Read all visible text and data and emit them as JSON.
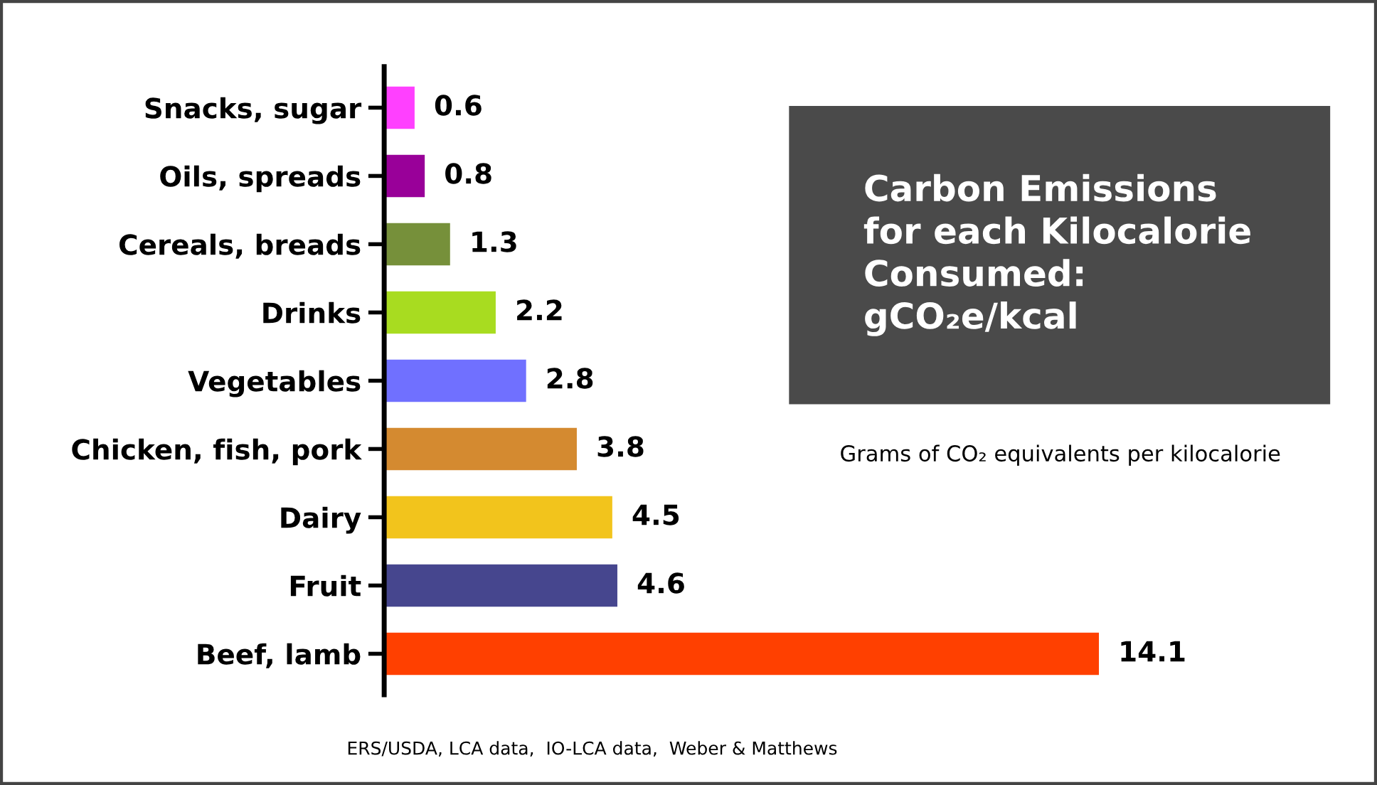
{
  "chart_data": {
    "type": "bar",
    "orientation": "horizontal",
    "title": "Carbon Emissions\nfor each Kilocalorie\nConsumed:\ngCO₂e/kcal",
    "subtitle": "Grams of CO₂ equivalents per kilocalorie",
    "categories": [
      "Snacks, sugar",
      "Oils, spreads",
      "Cereals, breads",
      "Drinks",
      "Vegetables",
      "Chicken, fish, pork",
      "Dairy",
      "Fruit",
      "Beef, lamb"
    ],
    "values": [
      0.6,
      0.8,
      1.3,
      2.2,
      2.8,
      3.8,
      4.5,
      4.6,
      14.1
    ],
    "colors": [
      "#ff40ff",
      "#990099",
      "#76903a",
      "#a8dc20",
      "#7070ff",
      "#d48a30",
      "#f2c41c",
      "#46468e",
      "#ff4000"
    ],
    "data_labels": true,
    "tick_labels": "y",
    "grid": false,
    "legend": false,
    "annotations": [
      "ERS/USDA, LCA data,  IO-LCA data,  Weber & Matthews"
    ]
  }
}
